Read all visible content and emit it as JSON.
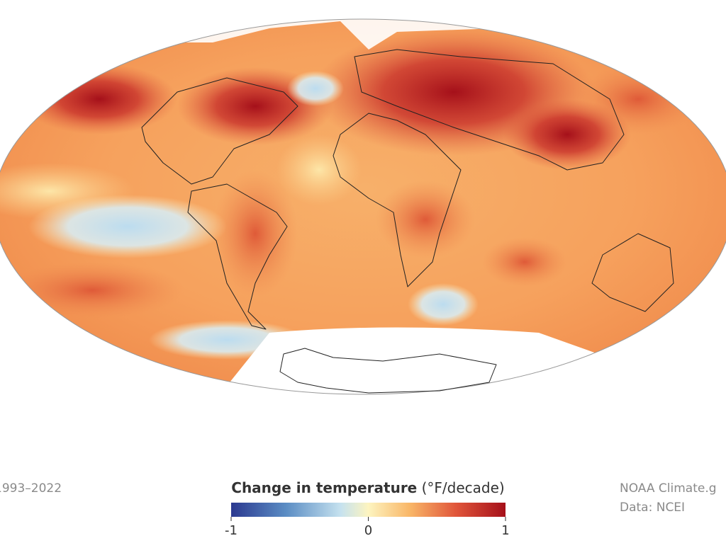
{
  "footer": {
    "period": "1993–2022",
    "credit": "NOAA Climate.g",
    "source": "Data: NCEI"
  },
  "legend": {
    "title": "Change in temperature",
    "unit": "(°F/decade)",
    "min": -1,
    "max": 1,
    "ticks": [
      -1,
      0,
      1
    ]
  }
}
